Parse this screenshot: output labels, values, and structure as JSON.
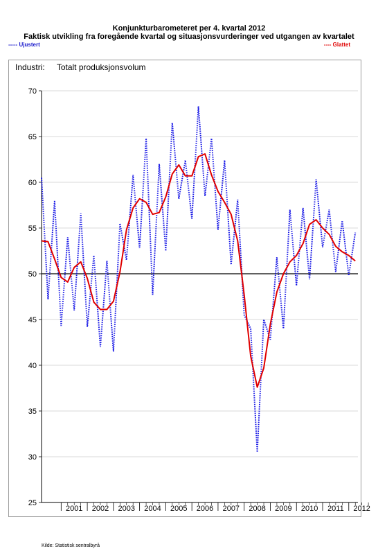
{
  "header": {
    "title": "Konjunkturbarometeret per 4. kvartal 2012",
    "subtitle": "Faktisk utvikling fra foregående kvartal og situasjonsvurderinger ved utgangen av kvartalet",
    "legend_left": "----- Ujustert",
    "legend_right": "---- Glattet"
  },
  "panel": {
    "label": "Industri:",
    "series_title": "Totalt produksjonsvolum"
  },
  "footer": {
    "source": "Kilde: Statistisk sentralbyrå"
  },
  "chart_data": {
    "type": "line",
    "ylim": [
      25,
      70
    ],
    "yticks": [
      25,
      30,
      35,
      40,
      45,
      50,
      55,
      60,
      65,
      70
    ],
    "year_labels": [
      "2001",
      "2002",
      "2003",
      "2004",
      "2005",
      "2006",
      "2007",
      "2008",
      "2009",
      "2010",
      "2011",
      "2012"
    ],
    "x_start": 2000.25,
    "reference_line": 50,
    "colors": {
      "unadjusted": "#1a1ae6",
      "smoothed": "#e00000",
      "reference": "#000000",
      "grid": "#cccccc"
    },
    "series": [
      {
        "name": "Ujustert",
        "style": "dotted",
        "values": [
          60.5,
          47.2,
          58.0,
          44.3,
          54.0,
          46.0,
          56.6,
          44.2,
          52.0,
          42.0,
          51.4,
          41.5,
          55.5,
          51.5,
          60.8,
          52.8,
          64.8,
          47.7,
          62.0,
          52.5,
          66.5,
          58.2,
          62.4,
          56.0,
          68.3,
          58.5,
          64.8,
          54.8,
          62.4,
          51.0,
          58.1,
          45.5,
          44.0,
          30.5,
          45.0,
          42.8,
          51.8,
          44.0,
          57.0,
          48.7,
          57.2,
          49.4,
          60.3,
          52.9,
          57.0,
          50.2,
          55.8,
          49.8,
          54.5
        ]
      },
      {
        "name": "Glattet",
        "style": "solid",
        "values": [
          53.6,
          53.5,
          51.6,
          49.6,
          49.1,
          50.7,
          51.3,
          49.5,
          46.9,
          46.1,
          46.1,
          47.0,
          50.2,
          54.8,
          57.2,
          58.2,
          57.8,
          56.5,
          56.7,
          58.4,
          60.9,
          61.9,
          60.7,
          60.7,
          62.8,
          63.1,
          60.8,
          59.0,
          57.8,
          56.5,
          53.6,
          47.7,
          41.0,
          37.6,
          39.7,
          44.5,
          48.0,
          50.0,
          51.3,
          52.0,
          53.3,
          55.4,
          55.9,
          55.0,
          54.3,
          53.0,
          52.4,
          52.0,
          51.4
        ]
      }
    ]
  }
}
